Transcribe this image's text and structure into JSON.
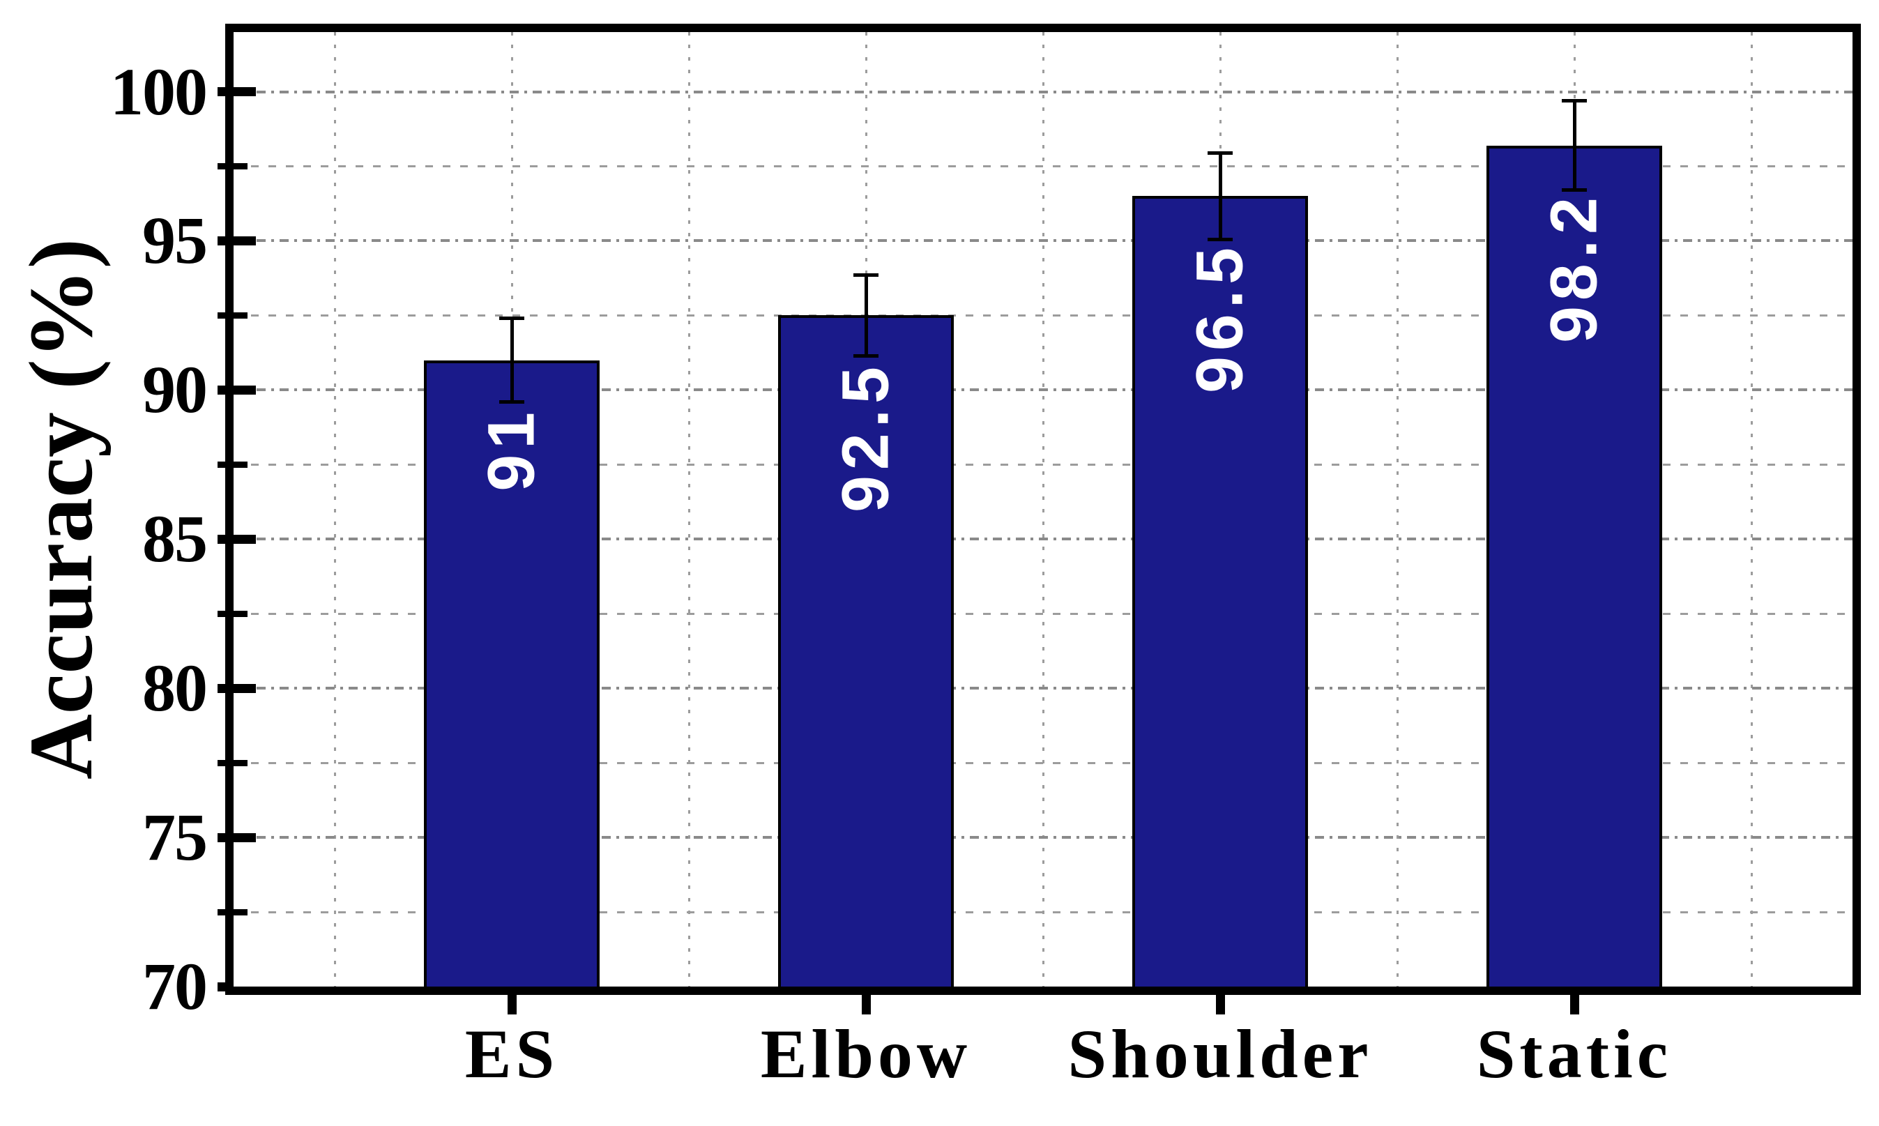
{
  "figure": {
    "background": "#ffffff"
  },
  "chart_data": {
    "type": "bar",
    "title": "",
    "categories": [
      "ES",
      "Elbow",
      "Shoulder",
      "Static"
    ],
    "values": [
      91,
      92.5,
      96.5,
      98.2
    ],
    "bar_value_labels": [
      "91",
      "92.5",
      "96.5",
      "98.2"
    ],
    "error_bars": [
      1.4,
      1.35,
      1.45,
      1.5
    ],
    "xlabel": "",
    "ylabel": "Accuracy (%)",
    "ylim": [
      70,
      102
    ],
    "yticks_major": [
      70,
      75,
      80,
      85,
      90,
      95,
      100
    ],
    "ytick_labels": [
      "70",
      "75",
      "80",
      "85",
      "90",
      "95",
      "100"
    ],
    "yticks_minor": [
      72.5,
      77.5,
      82.5,
      87.5,
      92.5,
      97.5
    ],
    "grid": {
      "horizontal": "dotted lines at every major and minor y tick",
      "vertical": "dotted lines at each bar center and at midpoints between bars"
    },
    "legend_position": "none",
    "bar_label_rotation_deg": -90,
    "colors": {
      "bar_fill": "#1a1a8a",
      "bar_edge": "#000000",
      "bar_label_text": "#ffffff",
      "error_bar": "#000000",
      "grid_major": "#8a8a8a",
      "grid_minor": "#9c9c9c",
      "axis": "#000000",
      "tick_label": "#000000",
      "background": "#ffffff"
    }
  }
}
